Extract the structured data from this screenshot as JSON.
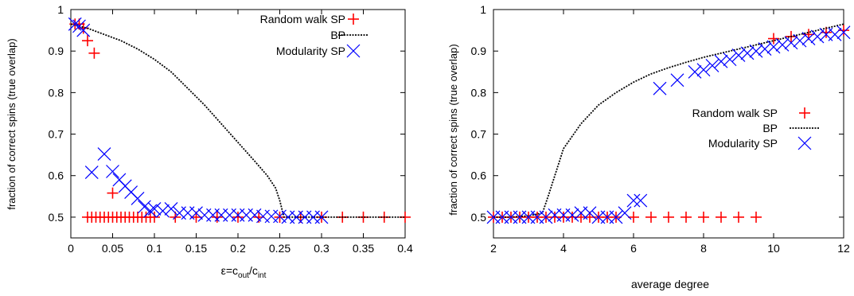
{
  "chart_data": [
    {
      "type": "scatter",
      "xlabel": "ε=c",
      "xlabel_sub1": "out",
      "xlabel_mid": "/c",
      "xlabel_sub2": "int",
      "ylabel": "fraction of correct spins (true overlap)",
      "xlim": [
        0,
        0.4
      ],
      "ylim": [
        0.45,
        1.0
      ],
      "xticks": [
        0,
        0.05,
        0.1,
        0.15,
        0.2,
        0.25,
        0.3,
        0.35,
        0.4
      ],
      "xtick_labels": [
        "0",
        "0.05",
        "0.1",
        "0.15",
        "0.2",
        "0.25",
        "0.3",
        "0.35",
        "0.4"
      ],
      "yticks": [
        0.5,
        0.6,
        0.7,
        0.8,
        0.9,
        1.0
      ],
      "ytick_labels": [
        "0.5",
        "0.6",
        "0.7",
        "0.8",
        "0.9",
        "1"
      ],
      "legend_position": "top-right",
      "series": [
        {
          "name": "Random walk SP",
          "marker": "plus",
          "color": "#ff0000",
          "points": [
            [
              0.005,
              0.965
            ],
            [
              0.01,
              0.965
            ],
            [
              0.015,
              0.955
            ],
            [
              0.02,
              0.925
            ],
            [
              0.028,
              0.895
            ],
            [
              0.05,
              0.558
            ],
            [
              0.02,
              0.5
            ],
            [
              0.025,
              0.5
            ],
            [
              0.03,
              0.5
            ],
            [
              0.035,
              0.5
            ],
            [
              0.04,
              0.5
            ],
            [
              0.045,
              0.5
            ],
            [
              0.05,
              0.5
            ],
            [
              0.055,
              0.5
            ],
            [
              0.06,
              0.5
            ],
            [
              0.065,
              0.5
            ],
            [
              0.07,
              0.5
            ],
            [
              0.075,
              0.5
            ],
            [
              0.08,
              0.5
            ],
            [
              0.085,
              0.5
            ],
            [
              0.09,
              0.5
            ],
            [
              0.095,
              0.5
            ],
            [
              0.1,
              0.5
            ],
            [
              0.125,
              0.5
            ],
            [
              0.15,
              0.5
            ],
            [
              0.175,
              0.5
            ],
            [
              0.2,
              0.5
            ],
            [
              0.225,
              0.5
            ],
            [
              0.25,
              0.5
            ],
            [
              0.275,
              0.5
            ],
            [
              0.3,
              0.5
            ],
            [
              0.325,
              0.5
            ],
            [
              0.35,
              0.5
            ],
            [
              0.375,
              0.5
            ],
            [
              0.4,
              0.5
            ]
          ]
        },
        {
          "name": "BP",
          "marker": "line",
          "color": "#000000",
          "points": [
            [
              0,
              0.965
            ],
            [
              0.02,
              0.955
            ],
            [
              0.04,
              0.94
            ],
            [
              0.06,
              0.925
            ],
            [
              0.08,
              0.905
            ],
            [
              0.1,
              0.88
            ],
            [
              0.12,
              0.85
            ],
            [
              0.14,
              0.81
            ],
            [
              0.16,
              0.77
            ],
            [
              0.18,
              0.725
            ],
            [
              0.2,
              0.68
            ],
            [
              0.22,
              0.635
            ],
            [
              0.235,
              0.6
            ],
            [
              0.245,
              0.57
            ],
            [
              0.25,
              0.54
            ],
            [
              0.255,
              0.5
            ],
            [
              0.3,
              0.5
            ],
            [
              0.35,
              0.5
            ],
            [
              0.4,
              0.5
            ]
          ]
        },
        {
          "name": "Modularity SP",
          "marker": "cross",
          "color": "#0000ff",
          "points": [
            [
              0.005,
              0.965
            ],
            [
              0.01,
              0.96
            ],
            [
              0.015,
              0.95
            ],
            [
              0.025,
              0.608
            ],
            [
              0.04,
              0.652
            ],
            [
              0.05,
              0.61
            ],
            [
              0.058,
              0.59
            ],
            [
              0.065,
              0.575
            ],
            [
              0.072,
              0.56
            ],
            [
              0.08,
              0.545
            ],
            [
              0.088,
              0.525
            ],
            [
              0.095,
              0.515
            ],
            [
              0.1,
              0.52
            ],
            [
              0.11,
              0.515
            ],
            [
              0.12,
              0.52
            ],
            [
              0.13,
              0.51
            ],
            [
              0.14,
              0.51
            ],
            [
              0.15,
              0.51
            ],
            [
              0.16,
              0.505
            ],
            [
              0.17,
              0.505
            ],
            [
              0.18,
              0.505
            ],
            [
              0.19,
              0.505
            ],
            [
              0.2,
              0.505
            ],
            [
              0.21,
              0.505
            ],
            [
              0.22,
              0.505
            ],
            [
              0.23,
              0.502
            ],
            [
              0.24,
              0.502
            ],
            [
              0.25,
              0.502
            ],
            [
              0.26,
              0.5
            ],
            [
              0.27,
              0.5
            ],
            [
              0.28,
              0.5
            ],
            [
              0.29,
              0.5
            ],
            [
              0.3,
              0.5
            ]
          ]
        }
      ]
    },
    {
      "type": "scatter",
      "xlabel": "average degree",
      "ylabel": "fraction of correct spins (true overlap)",
      "xlim": [
        2,
        12
      ],
      "ylim": [
        0.45,
        1.0
      ],
      "xticks": [
        2,
        4,
        6,
        8,
        10,
        12
      ],
      "xtick_labels": [
        "2",
        "4",
        "6",
        "8",
        "10",
        "12"
      ],
      "yticks": [
        0.5,
        0.6,
        0.7,
        0.8,
        0.9,
        1.0
      ],
      "ytick_labels": [
        "0.5",
        "0.6",
        "0.7",
        "0.8",
        "0.9",
        "1"
      ],
      "legend_position": "center-right",
      "series": [
        {
          "name": "Random walk SP",
          "marker": "plus",
          "color": "#ff0000",
          "points": [
            [
              2,
              0.5
            ],
            [
              2.25,
              0.5
            ],
            [
              2.5,
              0.5
            ],
            [
              2.75,
              0.5
            ],
            [
              3,
              0.5
            ],
            [
              3.25,
              0.5
            ],
            [
              3.5,
              0.5
            ],
            [
              3.75,
              0.5
            ],
            [
              4,
              0.5
            ],
            [
              4.25,
              0.5
            ],
            [
              4.5,
              0.5
            ],
            [
              4.75,
              0.5
            ],
            [
              5,
              0.5
            ],
            [
              5.25,
              0.5
            ],
            [
              5.5,
              0.5
            ],
            [
              6,
              0.5
            ],
            [
              6.5,
              0.5
            ],
            [
              7,
              0.5
            ],
            [
              7.5,
              0.5
            ],
            [
              8,
              0.5
            ],
            [
              8.5,
              0.5
            ],
            [
              9,
              0.5
            ],
            [
              9.5,
              0.5
            ],
            [
              10,
              0.93
            ],
            [
              10.5,
              0.935
            ],
            [
              11,
              0.94
            ],
            [
              11.5,
              0.945
            ],
            [
              12,
              0.95
            ]
          ]
        },
        {
          "name": "BP",
          "marker": "line",
          "color": "#000000",
          "points": [
            [
              2,
              0.5
            ],
            [
              2.5,
              0.5
            ],
            [
              3,
              0.503
            ],
            [
              3.4,
              0.51
            ],
            [
              3.6,
              0.56
            ],
            [
              4,
              0.665
            ],
            [
              4.5,
              0.725
            ],
            [
              5,
              0.77
            ],
            [
              5.5,
              0.8
            ],
            [
              6,
              0.825
            ],
            [
              6.5,
              0.845
            ],
            [
              7,
              0.86
            ],
            [
              7.5,
              0.873
            ],
            [
              8,
              0.885
            ],
            [
              8.5,
              0.895
            ],
            [
              9,
              0.905
            ],
            [
              9.5,
              0.915
            ],
            [
              10,
              0.925
            ],
            [
              10.5,
              0.935
            ],
            [
              11,
              0.945
            ],
            [
              11.5,
              0.955
            ],
            [
              12,
              0.965
            ]
          ]
        },
        {
          "name": "Modularity SP",
          "marker": "cross",
          "color": "#0000ff",
          "points": [
            [
              2,
              0.5
            ],
            [
              2.25,
              0.5
            ],
            [
              2.5,
              0.5
            ],
            [
              2.75,
              0.5
            ],
            [
              3,
              0.5
            ],
            [
              3.25,
              0.5
            ],
            [
              3.5,
              0.5
            ],
            [
              3.75,
              0.505
            ],
            [
              4,
              0.505
            ],
            [
              4.25,
              0.505
            ],
            [
              4.5,
              0.51
            ],
            [
              4.75,
              0.51
            ],
            [
              5,
              0.5
            ],
            [
              5.25,
              0.5
            ],
            [
              5.5,
              0.5
            ],
            [
              5.75,
              0.51
            ],
            [
              6,
              0.54
            ],
            [
              6.2,
              0.54
            ],
            [
              6.75,
              0.81
            ],
            [
              7.25,
              0.83
            ],
            [
              7.75,
              0.85
            ],
            [
              8,
              0.855
            ],
            [
              8.25,
              0.865
            ],
            [
              8.5,
              0.875
            ],
            [
              8.75,
              0.88
            ],
            [
              9,
              0.89
            ],
            [
              9.25,
              0.895
            ],
            [
              9.5,
              0.9
            ],
            [
              9.75,
              0.905
            ],
            [
              10,
              0.91
            ],
            [
              10.25,
              0.915
            ],
            [
              10.5,
              0.92
            ],
            [
              10.75,
              0.925
            ],
            [
              11,
              0.93
            ],
            [
              11.25,
              0.935
            ],
            [
              11.5,
              0.94
            ],
            [
              11.75,
              0.94
            ],
            [
              12,
              0.945
            ]
          ]
        }
      ]
    }
  ]
}
